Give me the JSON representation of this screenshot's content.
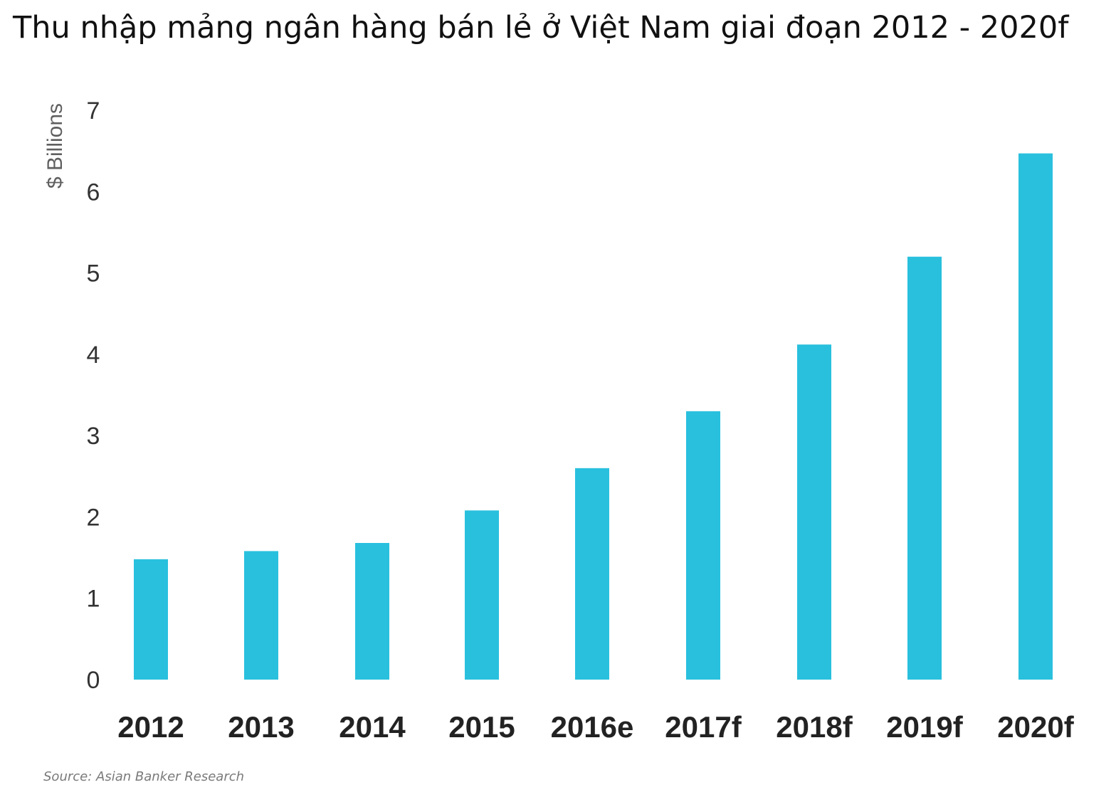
{
  "chart_data": {
    "type": "bar",
    "title": "Thu nhập mảng ngân hàng bán lẻ ở Việt Nam giai đoạn 2012 - 2020f",
    "ylabel": "$ Billions",
    "xlabel": "",
    "categories": [
      "2012",
      "2013",
      "2014",
      "2015",
      "2016e",
      "2017f",
      "2018f",
      "2019f",
      "2020f"
    ],
    "values": [
      1.48,
      1.58,
      1.68,
      2.08,
      2.6,
      3.3,
      4.12,
      5.2,
      6.47
    ],
    "ylim": [
      0,
      7
    ],
    "yticks": [
      "0",
      "1",
      "2",
      "3",
      "4",
      "5",
      "6",
      "7"
    ],
    "grid": false,
    "legend": "none",
    "bar_color": "#29c0de",
    "source": "Source: Asian Banker Research"
  }
}
